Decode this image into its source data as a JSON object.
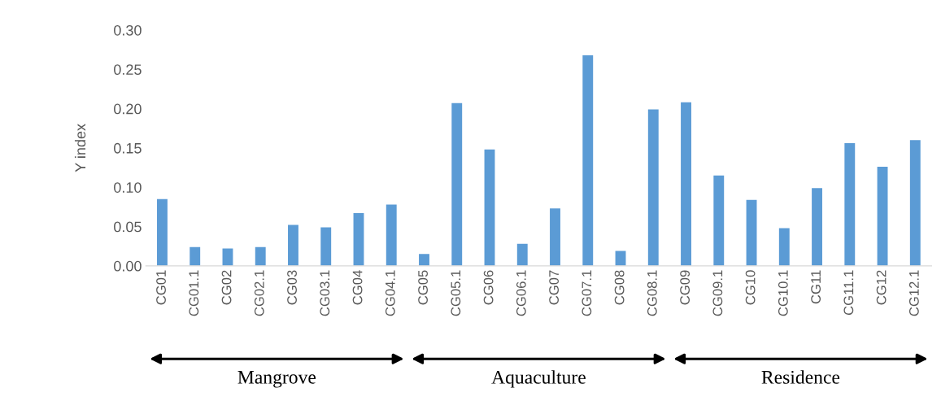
{
  "chart_data": {
    "type": "bar",
    "ylabel": "Y index",
    "categories": [
      "CG01",
      "CG01.1",
      "CG02",
      "CG02.1",
      "CG03",
      "CG03.1",
      "CG04",
      "CG04.1",
      "CG05",
      "CG05.1",
      "CG06",
      "CG06.1",
      "CG07",
      "CG07.1",
      "CG08",
      "CG08.1",
      "CG09",
      "CG09.1",
      "CG10",
      "CG10.1",
      "CG11",
      "CG11.1",
      "CG12",
      "CG12.1"
    ],
    "values": [
      0.085,
      0.024,
      0.022,
      0.024,
      0.052,
      0.049,
      0.067,
      0.078,
      0.015,
      0.207,
      0.148,
      0.028,
      0.073,
      0.268,
      0.019,
      0.199,
      0.208,
      0.115,
      0.084,
      0.048,
      0.099,
      0.156,
      0.126,
      0.16
    ],
    "color": "#5b9bd5",
    "ylim": [
      0,
      0.3
    ],
    "yticks": [
      {
        "value": 0,
        "label": "0.00"
      },
      {
        "value": 0.05,
        "label": "0.05"
      },
      {
        "value": 0.1,
        "label": "0.10"
      },
      {
        "value": 0.15,
        "label": "0.15"
      },
      {
        "value": 0.2,
        "label": "0.20"
      },
      {
        "value": 0.25,
        "label": "0.25"
      },
      {
        "value": 0.3,
        "label": "0.30"
      }
    ],
    "grid": false,
    "annotations": [
      "Mangrove",
      "Aquaculture",
      "Residence"
    ]
  }
}
